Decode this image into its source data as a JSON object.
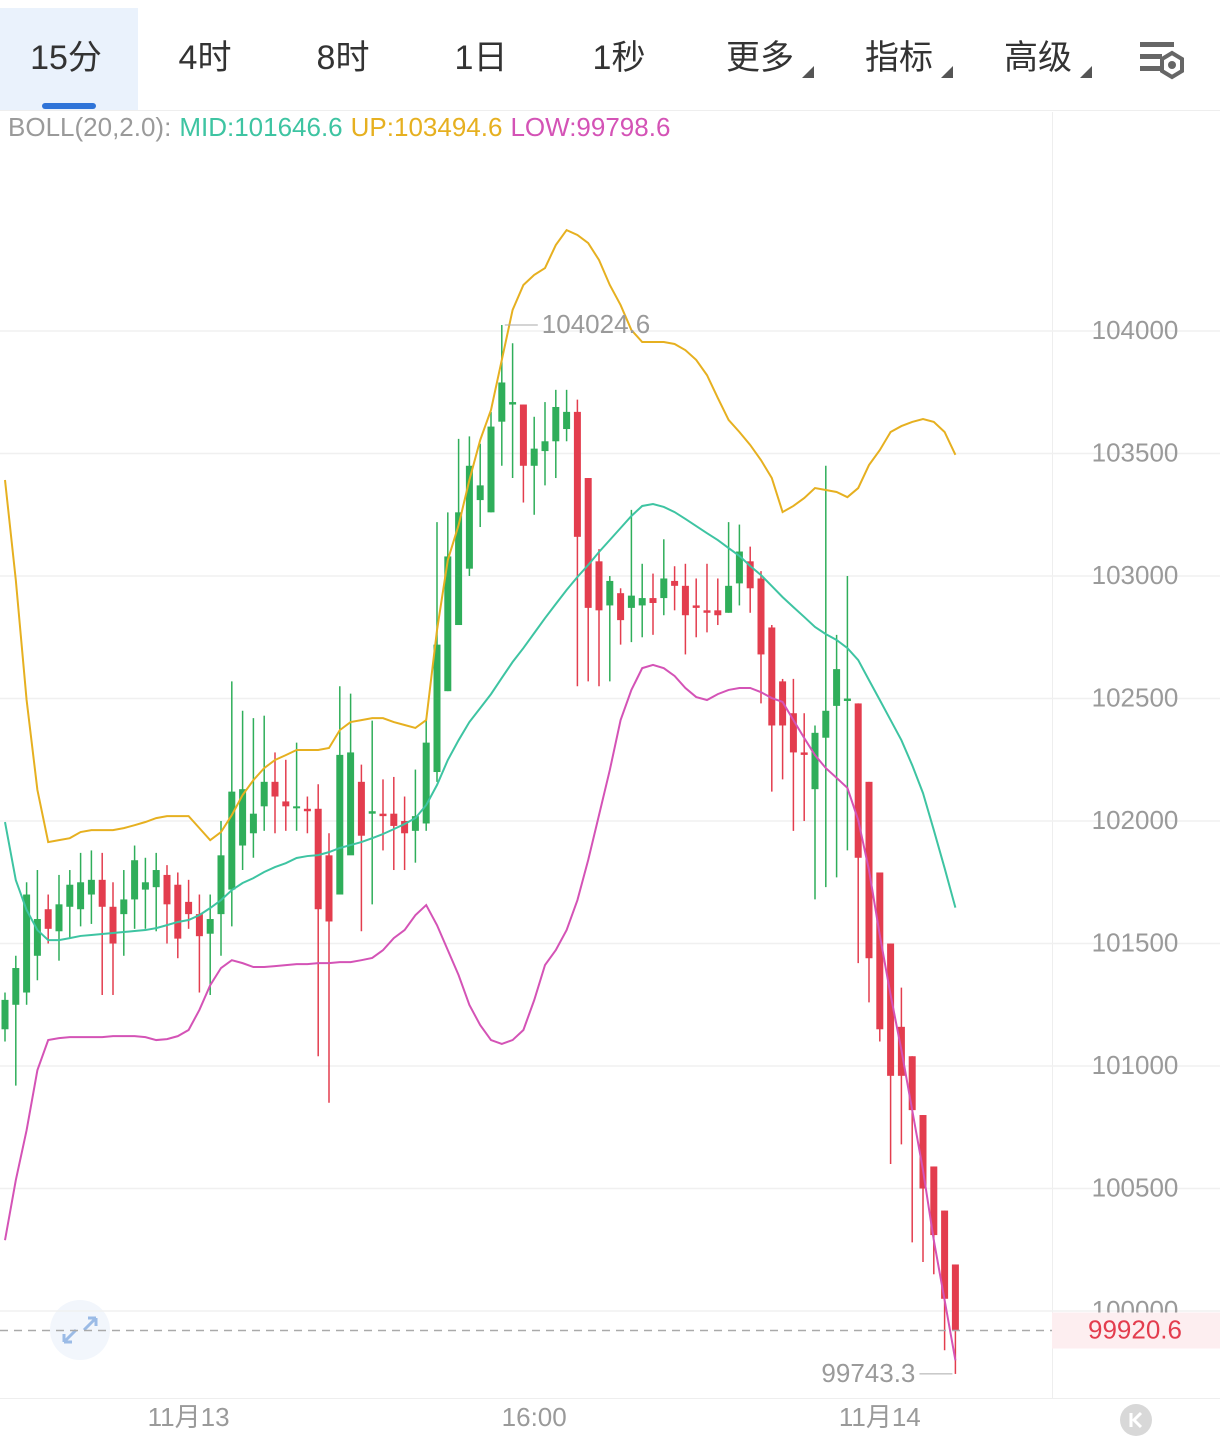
{
  "tabs": [
    "15分",
    "4时",
    "8时",
    "1日",
    "1秒",
    "更多",
    "指标",
    "高级"
  ],
  "active_tab": 0,
  "chart_data": {
    "type": "candlestick",
    "indicator_label": "BOLL(20,2.0):",
    "categories": [
      null,
      null,
      null,
      null,
      null,
      null,
      null,
      null,
      null,
      null,
      null,
      null,
      null,
      null,
      null,
      null,
      null,
      "11月13",
      null,
      null,
      null,
      null,
      null,
      null,
      null,
      null,
      null,
      null,
      null,
      null,
      null,
      null,
      null,
      null,
      null,
      null,
      null,
      null,
      null,
      null,
      null,
      null,
      null,
      null,
      null,
      null,
      null,
      null,
      null,
      "16:00",
      null,
      null,
      null,
      null,
      null,
      null,
      null,
      null,
      null,
      null,
      null,
      null,
      null,
      null,
      null,
      null,
      null,
      null,
      null,
      null,
      null,
      null,
      null,
      null,
      null,
      null,
      null,
      null,
      null,
      null,
      null,
      "11月14",
      null,
      null,
      null,
      null,
      null,
      null,
      null
    ],
    "open": [
      101150,
      101250,
      101300,
      101450,
      101640,
      101550,
      101650,
      101640,
      101700,
      101760,
      101650,
      101620,
      101680,
      101720,
      101730,
      101780,
      101740,
      101670,
      101620,
      101540,
      101620,
      101720,
      101900,
      101950,
      102060,
      102160,
      102080,
      102060,
      102050,
      102050,
      101860,
      101700,
      101860,
      102160,
      102030,
      102030,
      102030,
      102000,
      101960,
      101990,
      102200,
      102530,
      102800,
      103030,
      103310,
      103260,
      103630,
      103700,
      103700,
      103450,
      103510,
      103550,
      103600,
      103670,
      103400,
      103060,
      102880,
      102930,
      102870,
      102880,
      102910,
      102910,
      102980,
      102960,
      102880,
      102860,
      102860,
      102850,
      102970,
      103060,
      102990,
      102790,
      102570,
      102440,
      102280,
      102130,
      102340,
      102470,
      102490,
      102480,
      102160,
      101790,
      101500,
      101160,
      101040,
      100800,
      100590,
      100410,
      100190
    ],
    "high": [
      101300,
      101450,
      101750,
      101800,
      101700,
      101780,
      101800,
      101870,
      101880,
      101870,
      101750,
      101800,
      101900,
      101850,
      101870,
      101820,
      101790,
      101760,
      101700,
      101700,
      102000,
      102570,
      102450,
      102420,
      102430,
      102280,
      102250,
      102320,
      102100,
      102150,
      101950,
      102550,
      102520,
      102230,
      102410,
      102170,
      102180,
      102100,
      102210,
      102420,
      103220,
      103260,
      103560,
      103570,
      103540,
      103670,
      104024.6,
      103950,
      103700,
      103650,
      103710,
      103760,
      103760,
      103720,
      103400,
      103110,
      103000,
      102950,
      103270,
      103050,
      103010,
      103150,
      103040,
      103050,
      102990,
      103050,
      102990,
      103220,
      103210,
      103120,
      103020,
      102800,
      102580,
      102580,
      102440,
      102390,
      103450,
      102760,
      103000,
      102480,
      102160,
      101790,
      101500,
      101320,
      101040,
      100800,
      100590,
      100410,
      100190
    ],
    "low": [
      101100,
      100920,
      101250,
      101350,
      101500,
      101430,
      101520,
      101570,
      101580,
      101290,
      101290,
      101450,
      101560,
      101560,
      101550,
      101500,
      101440,
      101560,
      101300,
      101290,
      101450,
      101570,
      101800,
      101850,
      101960,
      101950,
      101960,
      101960,
      101950,
      101040,
      100850,
      101700,
      101870,
      101550,
      101660,
      101880,
      101800,
      101800,
      101830,
      101960,
      102160,
      102530,
      102800,
      103000,
      103200,
      103260,
      103450,
      103400,
      103300,
      103250,
      103370,
      103400,
      103550,
      102550,
      102570,
      102550,
      102570,
      102720,
      102730,
      102750,
      102760,
      102840,
      102860,
      102680,
      102750,
      102770,
      102800,
      102850,
      102880,
      102850,
      102480,
      102120,
      102170,
      101960,
      102000,
      101680,
      101730,
      101770,
      101880,
      101420,
      101260,
      101100,
      100600,
      100680,
      100280,
      100200,
      100150,
      99840,
      99743.3
    ],
    "close": [
      101270,
      101400,
      101700,
      101600,
      101560,
      101660,
      101740,
      101750,
      101760,
      101650,
      101500,
      101680,
      101840,
      101750,
      101800,
      101660,
      101520,
      101620,
      101530,
      101600,
      101860,
      102120,
      102130,
      102030,
      102160,
      102100,
      102060,
      102060,
      102040,
      101640,
      101590,
      102270,
      102280,
      101940,
      102040,
      102020,
      101980,
      101950,
      102020,
      102320,
      102720,
      103080,
      103260,
      103450,
      103370,
      103610,
      103790,
      103710,
      103450,
      103520,
      103550,
      103690,
      103670,
      103160,
      102870,
      102860,
      102980,
      102820,
      102920,
      102910,
      102890,
      102990,
      102960,
      102840,
      102870,
      102850,
      102840,
      102960,
      103100,
      102950,
      102680,
      102390,
      102390,
      102280,
      102270,
      102360,
      102450,
      102620,
      102500,
      101850,
      101440,
      101150,
      100960,
      100960,
      100820,
      100500,
      100310,
      100050,
      99920.6
    ],
    "up_color": "#2fae5a",
    "down_color": "#e33d4e",
    "overlays": [
      {
        "name": "MID:101646.6",
        "color": "#3ec4a2",
        "values": [
          101996,
          101759,
          101637,
          101555,
          101514,
          101514,
          101522,
          101531,
          101535,
          101539,
          101543,
          101547,
          101551,
          101555,
          101563,
          101575,
          101588,
          101596,
          101616,
          101645,
          101677,
          101718,
          101747,
          101767,
          101792,
          101812,
          101828,
          101849,
          101857,
          101861,
          101873,
          101890,
          101902,
          101914,
          101930,
          101947,
          101967,
          101988,
          102012,
          102065,
          102147,
          102249,
          102330,
          102404,
          102461,
          102518,
          102584,
          102649,
          102706,
          102767,
          102828,
          102886,
          102943,
          102996,
          103045,
          103098,
          103147,
          103196,
          103245,
          103286,
          103294,
          103282,
          103261,
          103233,
          103204,
          103175,
          103147,
          103114,
          103082,
          103041,
          103004,
          102959,
          102914,
          102873,
          102833,
          102792,
          102763,
          102739,
          102706,
          102657,
          102575,
          102494,
          102412,
          102330,
          102228,
          102114,
          101963,
          101808,
          101646.6
        ]
      },
      {
        "name": "UP:103494.6",
        "color": "#e6b020",
        "values": [
          103392,
          102984,
          102494,
          102127,
          101914,
          101922,
          101930,
          101955,
          101963,
          101963,
          101963,
          101971,
          101983,
          101996,
          102012,
          102020,
          102020,
          102020,
          101971,
          101922,
          101955,
          102024,
          102106,
          102167,
          102216,
          102249,
          102269,
          102290,
          102290,
          102290,
          102298,
          102371,
          102404,
          102412,
          102420,
          102420,
          102404,
          102392,
          102380,
          102412,
          102779,
          103065,
          103208,
          103392,
          103555,
          103678,
          103882,
          104086,
          104188,
          104229,
          104257,
          104351,
          104412,
          104392,
          104359,
          104290,
          104188,
          104106,
          104004,
          103955,
          103955,
          103955,
          103947,
          103922,
          103882,
          103820,
          103727,
          103637,
          103588,
          103535,
          103473,
          103400,
          103261,
          103286,
          103318,
          103359,
          103351,
          103343,
          103322,
          103359,
          103453,
          103514,
          103588,
          103612,
          103629,
          103641,
          103629,
          103588,
          103494.6
        ]
      },
      {
        "name": "LOW:99798.6",
        "color": "#d453b6",
        "values": [
          100289,
          100534,
          100738,
          100983,
          101106,
          101114,
          101118,
          101118,
          101118,
          101118,
          101122,
          101122,
          101122,
          101118,
          101106,
          101110,
          101122,
          101147,
          101229,
          101330,
          101400,
          101432,
          101420,
          101404,
          101404,
          101408,
          101412,
          101416,
          101416,
          101420,
          101420,
          101424,
          101424,
          101432,
          101441,
          101473,
          101522,
          101555,
          101616,
          101657,
          101575,
          101473,
          101371,
          101249,
          101167,
          101106,
          101090,
          101106,
          101147,
          101269,
          101412,
          101473,
          101555,
          101677,
          101841,
          102024,
          102208,
          102412,
          102535,
          102624,
          102637,
          102624,
          102592,
          102543,
          102506,
          102494,
          102518,
          102535,
          102543,
          102543,
          102526,
          102502,
          102486,
          102412,
          102339,
          102269,
          102216,
          102176,
          102135,
          102004,
          101800,
          101534,
          101290,
          101065,
          100820,
          100575,
          100289,
          100045,
          99798.6
        ]
      }
    ],
    "ylim": [
      99645,
      104894
    ],
    "yticks": [
      100000,
      100500,
      101000,
      101500,
      102000,
      102500,
      103000,
      103500,
      104000
    ],
    "grid": true
  }
}
